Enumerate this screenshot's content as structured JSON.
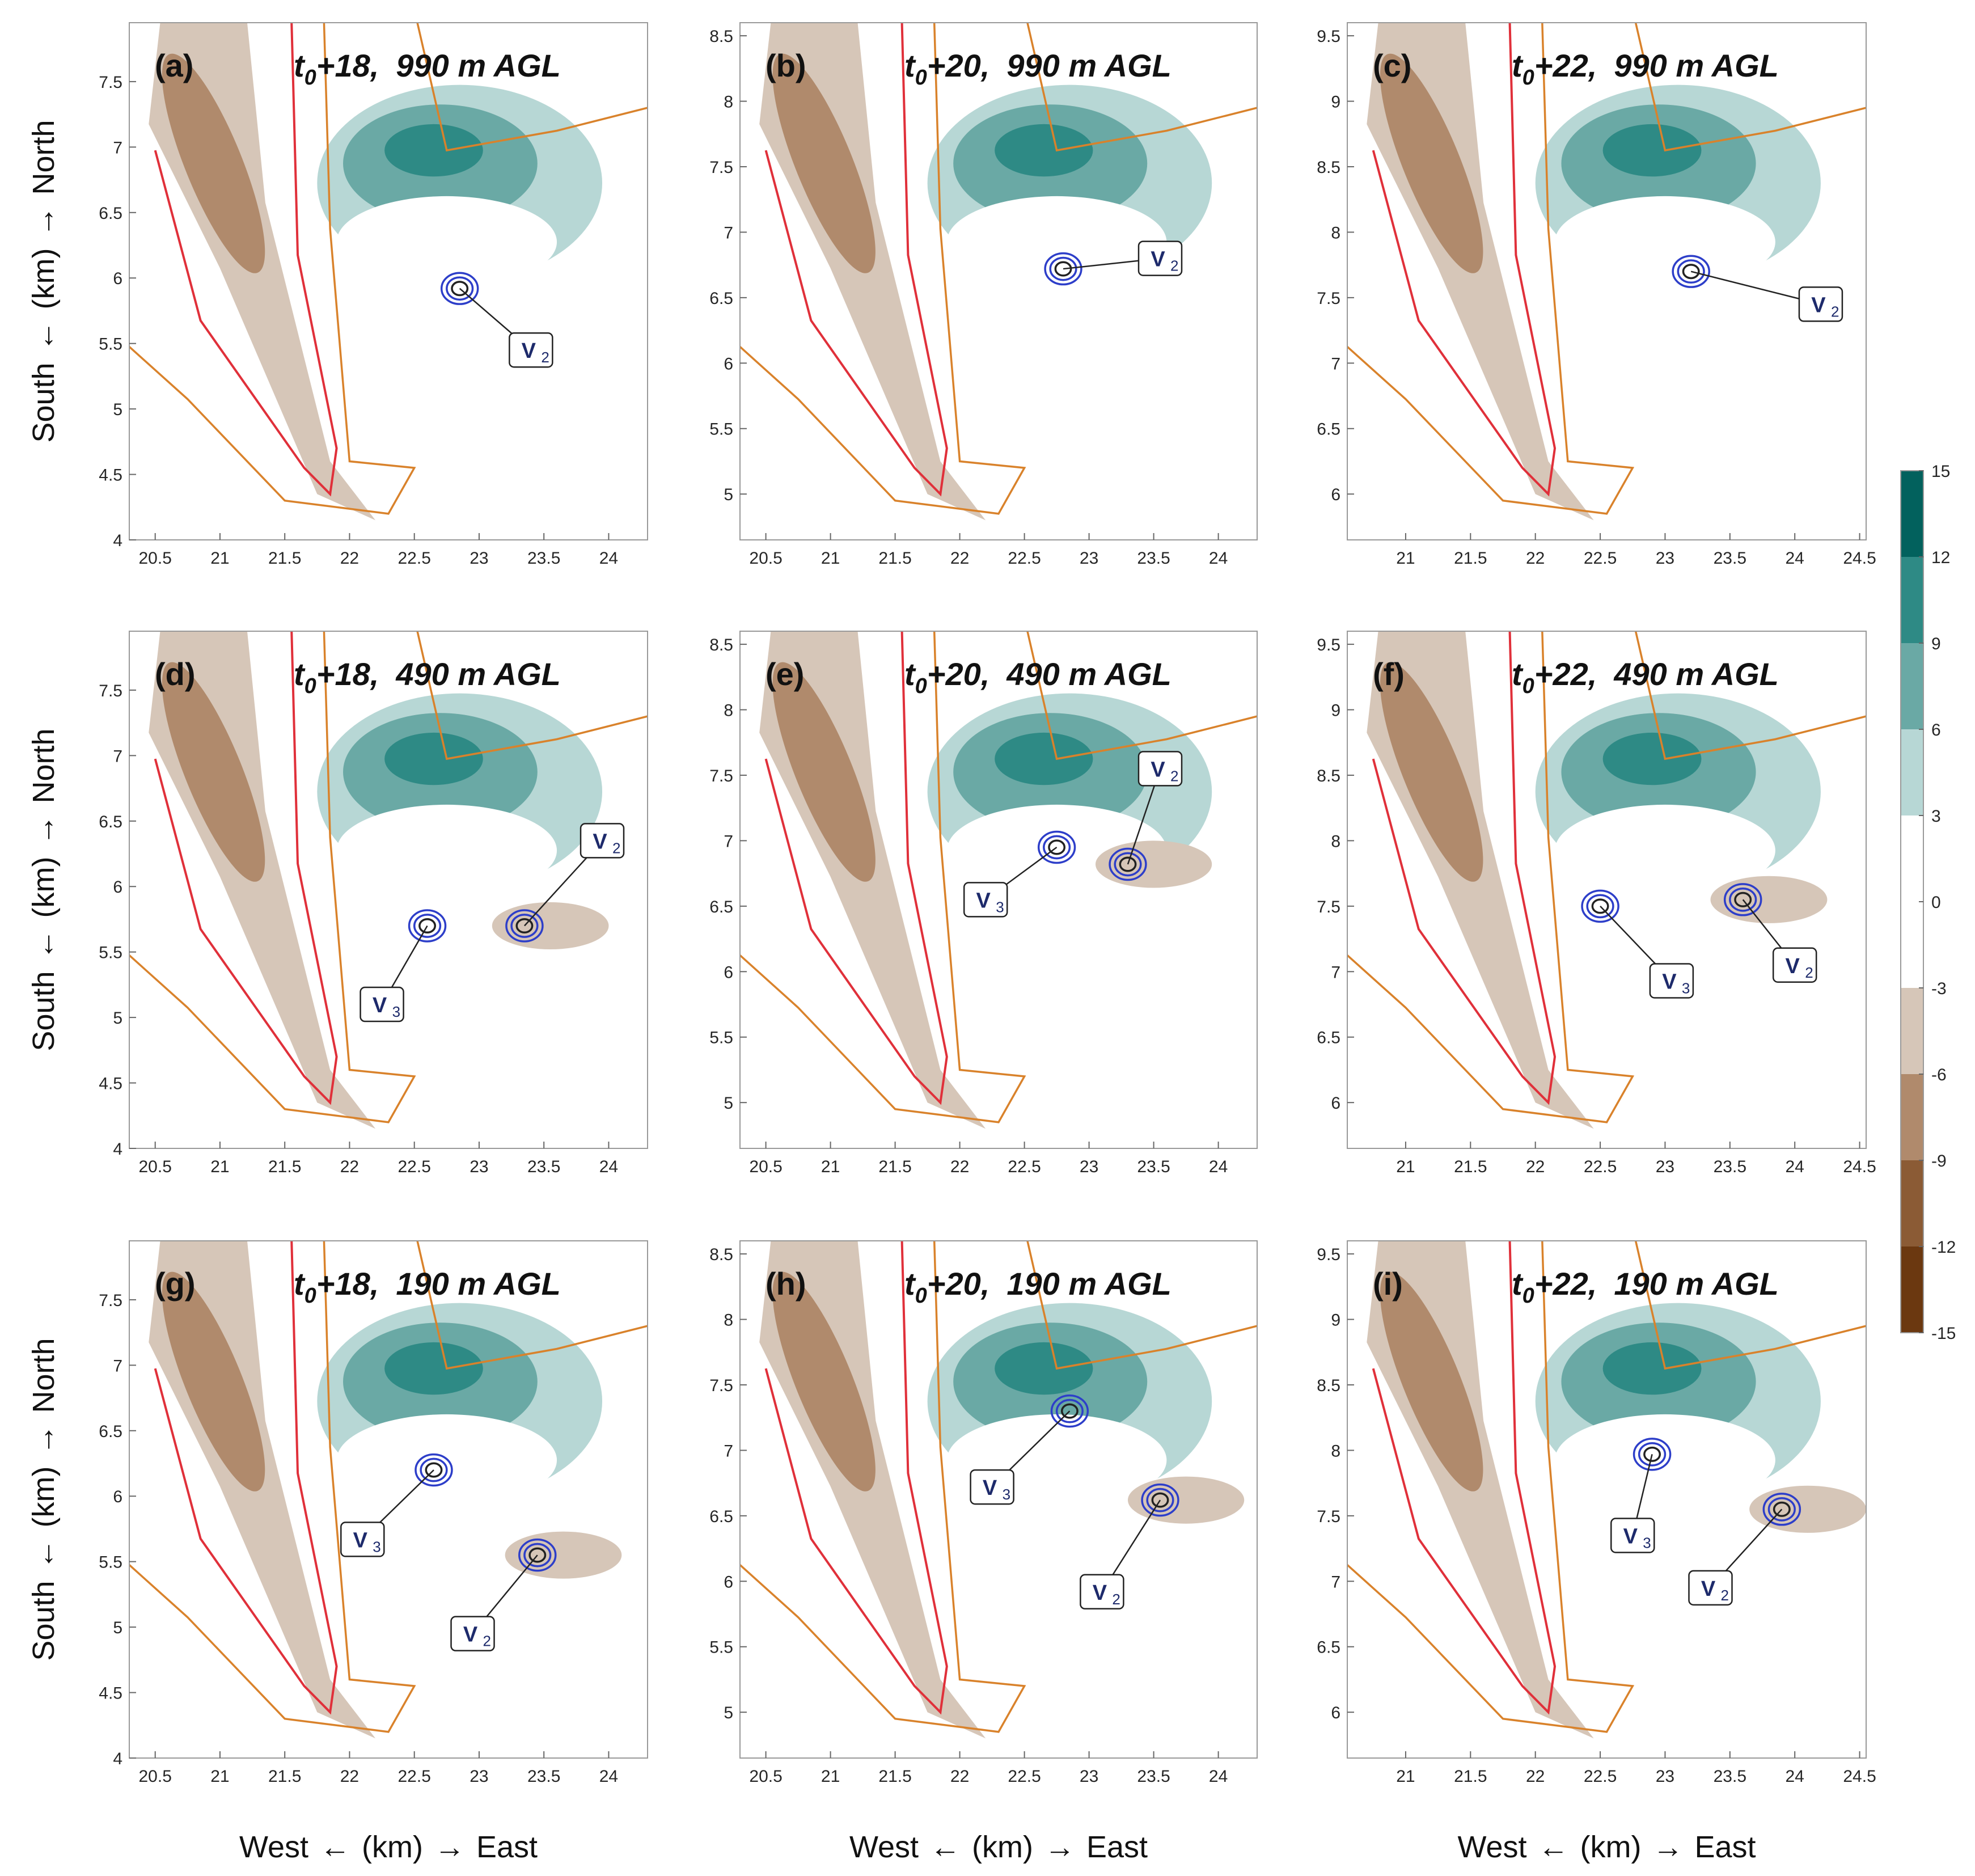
{
  "figure": {
    "row_ylabel": {
      "south": "South",
      "km": "(km)",
      "north": "North"
    },
    "col_xlabel": {
      "west": "West",
      "km": "(km)",
      "east": "East"
    }
  },
  "colorbar": {
    "ticks": [
      "15",
      "12",
      "9",
      "6",
      "3",
      "0",
      "-3",
      "-6",
      "-9",
      "-12",
      "-15"
    ],
    "colors": [
      "#02615d",
      "#2e8a85",
      "#6aa9a5",
      "#b7d7d5",
      "#ffffff",
      "#ffffff",
      "#d6c6b8",
      "#b08a6c",
      "#8b5b35",
      "#6b3810"
    ]
  },
  "chart_data": [
    {
      "type": "contour",
      "panel": "(a)",
      "title_time": "+18,",
      "title_height": "990 m AGL",
      "xlim": [
        20.3,
        24.3
      ],
      "ylim": [
        4.0,
        7.95
      ],
      "xticks": [
        "20.5",
        "21",
        "21.5",
        "22",
        "22.5",
        "23",
        "23.5",
        "24"
      ],
      "yticks": [
        "4",
        "4.5",
        "5",
        "5.5",
        "6",
        "6.5",
        "7",
        "7.5"
      ],
      "vortices": [
        {
          "label": "V",
          "sub": "2",
          "x": 22.85,
          "y": 5.92,
          "label_x": 23.4,
          "label_y": 5.45
        }
      ]
    },
    {
      "type": "contour",
      "panel": "(b)",
      "title_time": "+20,",
      "title_height": "990 m AGL",
      "xlim": [
        20.3,
        24.3
      ],
      "ylim": [
        4.65,
        8.6
      ],
      "xticks": [
        "20.5",
        "21",
        "21.5",
        "22",
        "22.5",
        "23",
        "23.5",
        "24"
      ],
      "yticks": [
        "5",
        "5.5",
        "6",
        "6.5",
        "7",
        "7.5",
        "8",
        "8.5"
      ],
      "vortices": [
        {
          "label": "V",
          "sub": "2",
          "x": 22.8,
          "y": 6.72,
          "label_x": 23.55,
          "label_y": 6.8
        }
      ]
    },
    {
      "type": "contour",
      "panel": "(c)",
      "title_time": "+22,",
      "title_height": "990 m AGL",
      "xlim": [
        20.55,
        24.55
      ],
      "ylim": [
        5.65,
        9.6
      ],
      "xticks": [
        "21",
        "21.5",
        "22",
        "22.5",
        "23",
        "23.5",
        "24",
        "24.5"
      ],
      "yticks": [
        "6",
        "6.5",
        "7",
        "7.5",
        "8",
        "8.5",
        "9",
        "9.5"
      ],
      "vortices": [
        {
          "label": "V",
          "sub": "2",
          "x": 23.2,
          "y": 7.7,
          "label_x": 24.2,
          "label_y": 7.45
        }
      ]
    },
    {
      "type": "contour",
      "panel": "(d)",
      "title_time": "+18,",
      "title_height": "490 m AGL",
      "xlim": [
        20.3,
        24.3
      ],
      "ylim": [
        4.0,
        7.95
      ],
      "xticks": [
        "20.5",
        "21",
        "21.5",
        "22",
        "22.5",
        "23",
        "23.5",
        "24"
      ],
      "yticks": [
        "4",
        "4.5",
        "5",
        "5.5",
        "6",
        "6.5",
        "7",
        "7.5"
      ],
      "vortices": [
        {
          "label": "V",
          "sub": "2",
          "x": 23.35,
          "y": 5.7,
          "label_x": 23.95,
          "label_y": 6.35
        },
        {
          "label": "V",
          "sub": "3",
          "x": 22.6,
          "y": 5.7,
          "label_x": 22.25,
          "label_y": 5.1
        }
      ]
    },
    {
      "type": "contour",
      "panel": "(e)",
      "title_time": "+20,",
      "title_height": "490 m AGL",
      "xlim": [
        20.3,
        24.3
      ],
      "ylim": [
        4.65,
        8.6
      ],
      "xticks": [
        "20.5",
        "21",
        "21.5",
        "22",
        "22.5",
        "23",
        "23.5",
        "24"
      ],
      "yticks": [
        "5",
        "5.5",
        "6",
        "6.5",
        "7",
        "7.5",
        "8",
        "8.5"
      ],
      "vortices": [
        {
          "label": "V",
          "sub": "2",
          "x": 23.3,
          "y": 6.82,
          "label_x": 23.55,
          "label_y": 7.55
        },
        {
          "label": "V",
          "sub": "3",
          "x": 22.75,
          "y": 6.95,
          "label_x": 22.2,
          "label_y": 6.55
        }
      ]
    },
    {
      "type": "contour",
      "panel": "(f)",
      "title_time": "+22,",
      "title_height": "490 m AGL",
      "xlim": [
        20.55,
        24.55
      ],
      "ylim": [
        5.65,
        9.6
      ],
      "xticks": [
        "21",
        "21.5",
        "22",
        "22.5",
        "23",
        "23.5",
        "24",
        "24.5"
      ],
      "yticks": [
        "6",
        "6.5",
        "7",
        "7.5",
        "8",
        "8.5",
        "9",
        "9.5"
      ],
      "vortices": [
        {
          "label": "V",
          "sub": "2",
          "x": 23.6,
          "y": 7.55,
          "label_x": 24.0,
          "label_y": 7.05
        },
        {
          "label": "V",
          "sub": "3",
          "x": 22.5,
          "y": 7.5,
          "label_x": 23.05,
          "label_y": 6.93
        }
      ]
    },
    {
      "type": "contour",
      "panel": "(g)",
      "title_time": "+18,",
      "title_height": "190 m AGL",
      "xlim": [
        20.3,
        24.3
      ],
      "ylim": [
        4.0,
        7.95
      ],
      "xticks": [
        "20.5",
        "21",
        "21.5",
        "22",
        "22.5",
        "23",
        "23.5",
        "24"
      ],
      "yticks": [
        "4",
        "4.5",
        "5",
        "5.5",
        "6",
        "6.5",
        "7",
        "7.5"
      ],
      "vortices": [
        {
          "label": "V",
          "sub": "2",
          "x": 23.45,
          "y": 5.55,
          "label_x": 22.95,
          "label_y": 4.95
        },
        {
          "label": "V",
          "sub": "3",
          "x": 22.65,
          "y": 6.2,
          "label_x": 22.1,
          "label_y": 5.67
        }
      ]
    },
    {
      "type": "contour",
      "panel": "(h)",
      "title_time": "+20,",
      "title_height": "190 m AGL",
      "xlim": [
        20.3,
        24.3
      ],
      "ylim": [
        4.65,
        8.6
      ],
      "xticks": [
        "20.5",
        "21",
        "21.5",
        "22",
        "22.5",
        "23",
        "23.5",
        "24"
      ],
      "yticks": [
        "5",
        "5.5",
        "6",
        "6.5",
        "7",
        "7.5",
        "8",
        "8.5"
      ],
      "vortices": [
        {
          "label": "V",
          "sub": "2",
          "x": 23.55,
          "y": 6.62,
          "label_x": 23.1,
          "label_y": 5.92
        },
        {
          "label": "V",
          "sub": "3",
          "x": 22.85,
          "y": 7.3,
          "label_x": 22.25,
          "label_y": 6.72
        }
      ]
    },
    {
      "type": "contour",
      "panel": "(i)",
      "title_time": "+22,",
      "title_height": "190 m AGL",
      "xlim": [
        20.55,
        24.55
      ],
      "ylim": [
        5.65,
        9.6
      ],
      "xticks": [
        "21",
        "21.5",
        "22",
        "22.5",
        "23",
        "23.5",
        "24",
        "24.5"
      ],
      "yticks": [
        "6",
        "6.5",
        "7",
        "7.5",
        "8",
        "8.5",
        "9",
        "9.5"
      ],
      "vortices": [
        {
          "label": "V",
          "sub": "2",
          "x": 23.9,
          "y": 7.55,
          "label_x": 23.35,
          "label_y": 6.95
        },
        {
          "label": "V",
          "sub": "3",
          "x": 22.9,
          "y": 7.97,
          "label_x": 22.75,
          "label_y": 7.35
        }
      ]
    }
  ]
}
